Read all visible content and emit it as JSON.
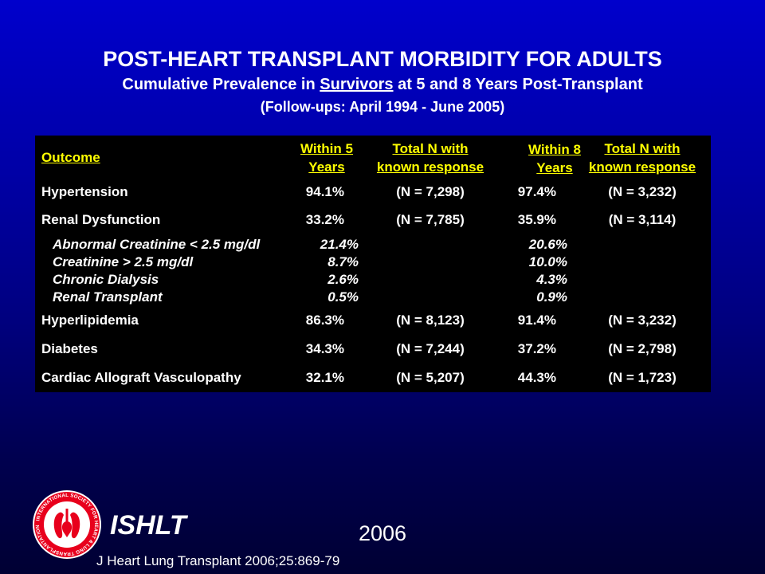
{
  "slide": {
    "title": "POST-HEART TRANSPLANT MORBIDITY FOR ADULTS",
    "subtitle_before": "Cumulative Prevalence in ",
    "subtitle_underlined": "Survivors",
    "subtitle_after": " at 5 and 8 Years Post-Transplant",
    "dates": "(Follow-ups: April 1994 - June 2005)"
  },
  "table": {
    "headers": {
      "outcome": "Outcome",
      "within5_line1": "Within 5",
      "within5_line2": "Years",
      "totaln5_line1": "Total N with",
      "totaln5_line2": "known response",
      "within8_line1": "Within 8",
      "within8_line2": "Years",
      "totaln8_line1": "Total N with",
      "totaln8_line2": "known response"
    },
    "rows": [
      {
        "outcome": "Hypertension",
        "y5": "94.1%",
        "n5": "(N = 7,298)",
        "y8": "97.4%",
        "n8": "(N = 3,232)"
      },
      {
        "outcome": "Renal Dysfunction",
        "y5": "33.2%",
        "n5": "(N = 7,785)",
        "y8": "35.9%",
        "n8": "(N = 3,114)"
      },
      {
        "outcome": "Abnormal Creatinine < 2.5 mg/dl",
        "y5": "21.4%",
        "y8": "20.6%"
      },
      {
        "outcome": "Creatinine > 2.5 mg/dl",
        "y5": "8.7%",
        "y8": "10.0%"
      },
      {
        "outcome": "Chronic Dialysis",
        "y5": "2.6%",
        "y8": "4.3%"
      },
      {
        "outcome": "Renal Transplant",
        "y5": "0.5%",
        "y8": "0.9%"
      },
      {
        "outcome": "Hyperlipidemia",
        "y5": "86.3%",
        "n5": "(N = 8,123)",
        "y8": "91.4%",
        "n8": "(N = 3,232)"
      },
      {
        "outcome": "Diabetes",
        "y5": "34.3%",
        "n5": "(N = 7,244)",
        "y8": "37.2%",
        "n8": "(N = 2,798)"
      },
      {
        "outcome": "Cardiac Allograft Vasculopathy",
        "y5": "32.1%",
        "n5": "(N = 5,207)",
        "y8": "44.3%",
        "n8": "(N = 1,723)"
      }
    ]
  },
  "footer": {
    "logo_text": "INTERNATIONAL SOCIETY FOR HEART & LUNG TRANSPLANTATION",
    "org": "ISHLT",
    "year": "2006",
    "citation": "J Heart Lung Transplant 2006;25:869-79"
  },
  "colors": {
    "header_text": "#ffff00",
    "body_text": "#ffffff",
    "table_bg": "#000000",
    "logo_red": "#e8001c"
  }
}
